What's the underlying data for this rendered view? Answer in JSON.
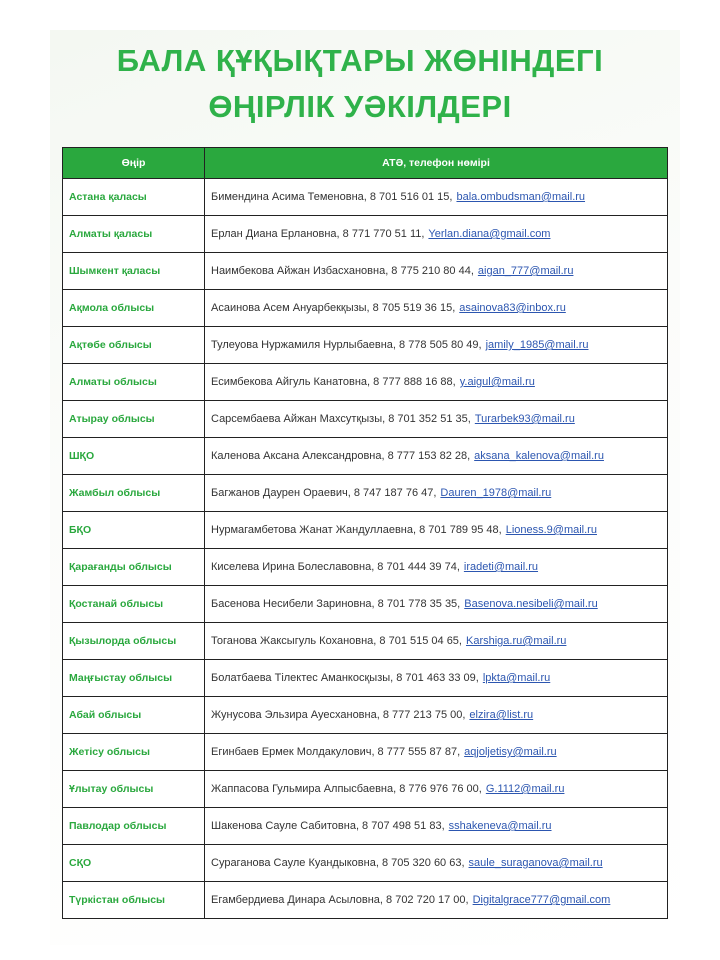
{
  "header": {
    "title": [
      "БАЛА ҚҰҚЫҚТАРЫ ЖӨНІНДЕГІ",
      "ӨҢІРЛІК УӘКІЛДЕРІ"
    ]
  },
  "table": {
    "columns": [
      "Өңір",
      "АТӘ, телефон нөмірі"
    ],
    "rows": [
      [
        "Астана қаласы",
        "Бимендина Асима Теменовна, 8 701 516 01 15,",
        "bala.ombudsman@mail.ru"
      ],
      [
        "Алматы қаласы",
        "Ерлан Диана Ерлановна, 8 771 770 51 11,",
        "Yerlan.diana@gmail.com"
      ],
      [
        "Шымкент қаласы",
        "Наимбекова Айжан Избасхановна, 8 775 210 80 44,",
        "aigan_777@mail.ru"
      ],
      [
        "Ақмола облысы",
        "Асаинова Асем Ануарбекқызы, 8 705 519 36 15,",
        "asainova83@inbox.ru"
      ],
      [
        "Ақтөбе облысы",
        "Тулеуова Нуржамиля Нурлыбаевна, 8 778 505 80 49,",
        "jamily_1985@mail.ru"
      ],
      [
        "Алматы облысы",
        "Есимбекова Айгуль Канатовна, 8 777 888 16 88,",
        "y.aigul@mail.ru"
      ],
      [
        "Атырау облысы",
        "Сарсембаева Айжан Махсутқызы, 8 701 352 51 35,",
        "Turarbek93@mail.ru"
      ],
      [
        "ШҚО",
        "Каленова Аксана Александровна, 8 777 153 82 28,",
        "aksana_kalenova@mail.ru"
      ],
      [
        "Жамбыл облысы",
        "Багжанов Даурен Ораевич, 8 747 187 76 47,",
        "Dauren_1978@mail.ru"
      ],
      [
        "БҚО",
        "Нурмагамбетова Жанат Жандуллаевна, 8 701 789 95 48,",
        "Lioness.9@mail.ru"
      ],
      [
        "Қарағанды облысы",
        "Киселева Ирина Болеславовна, 8 701 444 39 74,",
        "iradeti@mail.ru"
      ],
      [
        "Қостанай облысы",
        "Басенова Несибели Зариновна, 8 701 778 35 35,",
        "Basenova.nesibeli@mail.ru"
      ],
      [
        "Қызылорда облысы",
        "Тоганова Жаксыгуль Кохановна, 8 701 515 04 65,",
        "Karshiga.ru@mail.ru"
      ],
      [
        "Маңғыстау облысы",
        "Болатбаева Тілектес Аманкосқызы, 8 701 463 33 09,",
        "lpkta@mail.ru"
      ],
      [
        "Абай облысы",
        "Жунусова Эльзира Ауесхановна, 8 777 213 75 00,",
        "elzira@list.ru"
      ],
      [
        "Жетісу облысы",
        "Егинбаев Ермек Молдакулович, 8 777 555 87 87,",
        "aqjoljetisy@mail.ru"
      ],
      [
        "Ұлытау облысы",
        "Жаппасова Гульмира Алпысбаевна, 8 776 976 76 00,",
        "G.1112@mail.ru"
      ],
      [
        "Павлодар облысы",
        "Шакенова Сауле Сабитовна, 8 707 498 51 83,",
        "sshakeneva@mail.ru"
      ],
      [
        "СҚО",
        "Сураганова Сауле Куандыковна, 8 705 320 60 63,",
        "saule_suraganova@mail.ru"
      ],
      [
        "Түркістан облысы",
        "Егамбердиева Динара Асыловна, 8 702 720 17 00,",
        "Digitalgrace777@gmail.com"
      ]
    ]
  }
}
